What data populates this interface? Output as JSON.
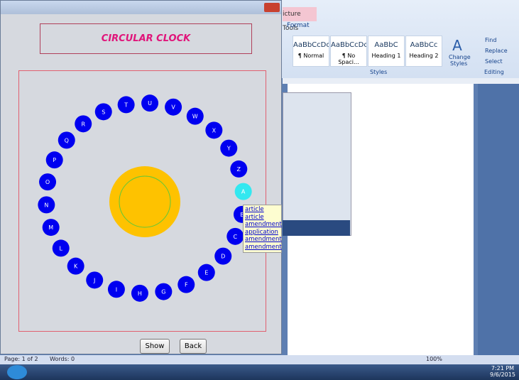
{
  "window": {
    "title": "CIRCULAR CLOCK",
    "letters": [
      "A",
      "B",
      "C",
      "D",
      "E",
      "F",
      "G",
      "H",
      "I",
      "J",
      "K",
      "L",
      "M",
      "N",
      "O",
      "P",
      "Q",
      "R",
      "S",
      "T",
      "U",
      "V",
      "W",
      "X",
      "Y",
      "Z"
    ],
    "suggestions": [
      "article",
      "article",
      "amendment",
      "application",
      "amendment",
      "amendment"
    ],
    "buttons": [
      "Show",
      "Back"
    ]
  },
  "word": {
    "tab_header": "icture Tools",
    "tab": "Format",
    "styles": [
      {
        "preview": "AaBbCcDc",
        "name": "¶ Normal"
      },
      {
        "preview": "AaBbCcDc",
        "name": "¶ No Spaci..."
      },
      {
        "preview": "AaBbC",
        "name": "Heading 1"
      },
      {
        "preview": "AaBbCc",
        "name": "Heading 2"
      }
    ],
    "change": "Change",
    "styles_btn": "Styles",
    "find": "Find",
    "replace": "Replace",
    "select": "Select",
    "group_styles": "Styles",
    "group_editing": "Editing",
    "status": {
      "page": "Page: 1 of 2",
      "words": "Words: 0",
      "zoom": "100%"
    }
  },
  "taskbar": {
    "time": "7:21 PM",
    "date": "9/6/2015"
  }
}
